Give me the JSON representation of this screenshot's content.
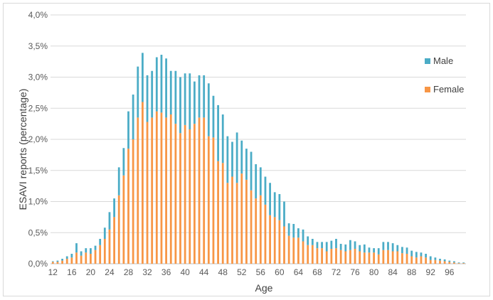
{
  "chart_data": {
    "type": "bar",
    "stacked": true,
    "xlabel": "Age",
    "ylabel": "ESAVI reports (percentage)",
    "ylim": [
      0,
      4.0
    ],
    "yticks": [
      "0,0%",
      "0,5%",
      "1,0%",
      "1,5%",
      "2,0%",
      "2,5%",
      "3,0%",
      "3,5%",
      "4,0%"
    ],
    "xticks": [
      "12",
      "16",
      "20",
      "24",
      "28",
      "32",
      "36",
      "40",
      "44",
      "48",
      "52",
      "56",
      "60",
      "64",
      "68",
      "72",
      "76",
      "80",
      "84",
      "88",
      "92",
      "96"
    ],
    "grid": true,
    "legend_position": "right",
    "colors": {
      "male": "#4BACC6",
      "female": "#F79646",
      "grid": "#d9d9d9"
    },
    "categories": [
      12,
      13,
      14,
      15,
      16,
      17,
      18,
      19,
      20,
      21,
      22,
      23,
      24,
      25,
      26,
      27,
      28,
      29,
      30,
      31,
      32,
      33,
      34,
      35,
      36,
      37,
      38,
      39,
      40,
      41,
      42,
      43,
      44,
      45,
      46,
      47,
      48,
      49,
      50,
      51,
      52,
      53,
      54,
      55,
      56,
      57,
      58,
      59,
      60,
      61,
      62,
      63,
      64,
      65,
      66,
      67,
      68,
      69,
      70,
      71,
      72,
      73,
      74,
      75,
      76,
      77,
      78,
      79,
      80,
      81,
      82,
      83,
      84,
      85,
      86,
      87,
      88,
      89,
      90,
      91,
      92,
      93,
      94,
      95,
      96,
      97,
      98,
      99
    ],
    "series": [
      {
        "name": "Female",
        "values": [
          0.03,
          0.03,
          0.05,
          0.08,
          0.1,
          0.18,
          0.13,
          0.18,
          0.16,
          0.22,
          0.3,
          0.4,
          0.55,
          0.75,
          1.1,
          1.42,
          1.85,
          2.0,
          2.35,
          2.6,
          2.28,
          2.35,
          2.45,
          2.43,
          2.35,
          2.4,
          2.25,
          2.1,
          2.23,
          2.16,
          2.25,
          2.35,
          2.35,
          2.05,
          2.03,
          1.65,
          1.62,
          1.3,
          1.4,
          1.3,
          1.45,
          1.35,
          1.18,
          1.05,
          1.1,
          0.95,
          0.78,
          0.75,
          0.7,
          0.6,
          0.45,
          0.42,
          0.42,
          0.36,
          0.3,
          0.3,
          0.25,
          0.25,
          0.2,
          0.24,
          0.25,
          0.22,
          0.2,
          0.22,
          0.24,
          0.2,
          0.18,
          0.18,
          0.18,
          0.15,
          0.22,
          0.22,
          0.2,
          0.2,
          0.17,
          0.16,
          0.12,
          0.1,
          0.12,
          0.1,
          0.06,
          0.06,
          0.05,
          0.04,
          0.03,
          0.02,
          0.01,
          0.01
        ]
      },
      {
        "name": "Male",
        "values": [
          0.01,
          0.02,
          0.03,
          0.04,
          0.06,
          0.15,
          0.07,
          0.07,
          0.09,
          0.07,
          0.1,
          0.18,
          0.28,
          0.3,
          0.45,
          0.44,
          0.6,
          0.72,
          0.82,
          0.79,
          0.75,
          0.75,
          0.87,
          0.93,
          0.95,
          0.7,
          0.85,
          0.9,
          0.83,
          0.9,
          0.68,
          0.68,
          0.68,
          0.85,
          0.67,
          0.9,
          0.78,
          0.75,
          0.56,
          0.81,
          0.53,
          0.5,
          0.62,
          0.55,
          0.45,
          0.45,
          0.52,
          0.4,
          0.42,
          0.4,
          0.2,
          0.22,
          0.15,
          0.19,
          0.14,
          0.1,
          0.1,
          0.1,
          0.15,
          0.13,
          0.15,
          0.1,
          0.11,
          0.16,
          0.12,
          0.1,
          0.13,
          0.08,
          0.07,
          0.1,
          0.13,
          0.13,
          0.13,
          0.1,
          0.1,
          0.1,
          0.09,
          0.09,
          0.06,
          0.06,
          0.06,
          0.04,
          0.03,
          0.03,
          0.02,
          0.02,
          0.01,
          0.01
        ]
      }
    ]
  }
}
